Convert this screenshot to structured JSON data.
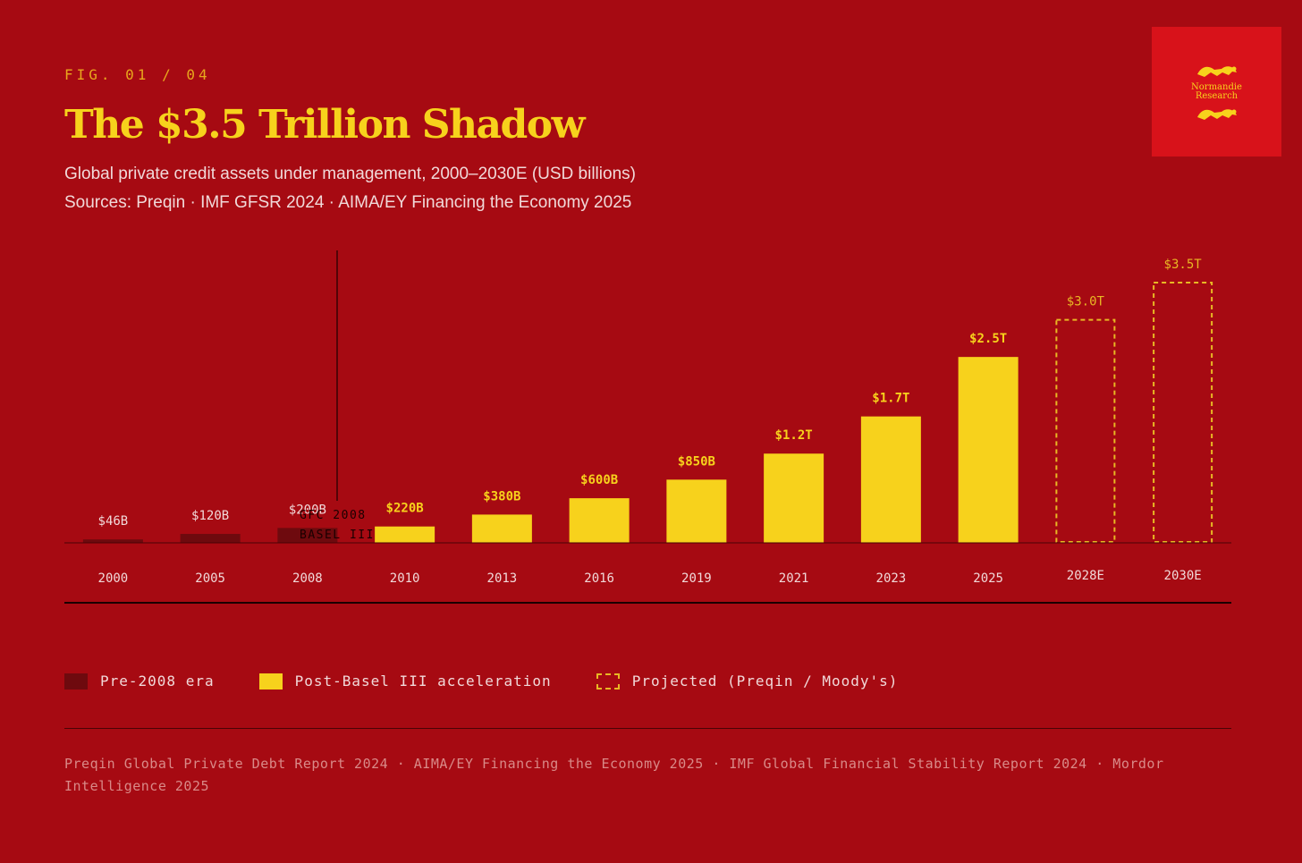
{
  "header": {
    "fig_label": "FIG. 01 / 04",
    "title": "The $3.5 Trillion Shadow",
    "subtitle": "Global private credit assets under management, 2000–2030E (USD billions)",
    "sources": "Sources: Preqin · IMF GFSR 2024 · AIMA/EY Financing the Economy 2025"
  },
  "logo": {
    "text": "Normandie\nResearch"
  },
  "chart_data": {
    "type": "bar",
    "title": "The $3.5 Trillion Shadow",
    "ylabel": "USD billions",
    "ylim": [
      0,
      3500
    ],
    "categories": [
      "2000",
      "2005",
      "2008",
      "2010",
      "2013",
      "2016",
      "2019",
      "2021",
      "2023",
      "2025",
      "2028E",
      "2030E"
    ],
    "values": [
      46,
      120,
      200,
      220,
      380,
      600,
      850,
      1200,
      1700,
      2500,
      3000,
      3500
    ],
    "value_labels": [
      "$46B",
      "$120B",
      "$200B",
      "$220B",
      "$380B",
      "$600B",
      "$850B",
      "$1.2T",
      "$1.7T",
      "$2.5T",
      "$3.0T",
      "$3.5T"
    ],
    "eras": [
      "pre",
      "pre",
      "pre",
      "post",
      "post",
      "post",
      "post",
      "post",
      "post",
      "post",
      "proj",
      "proj"
    ],
    "annotation": {
      "after_category": "2008",
      "lines": [
        "GFC 2008",
        "BASEL III"
      ]
    },
    "colors": {
      "pre": "#6e0a0e",
      "post": "#f7d21c",
      "proj": "#e8b824"
    }
  },
  "legend": {
    "pre": "Pre-2008 era",
    "post": "Post-Basel III acceleration",
    "proj": "Projected (Preqin / Moody's)"
  },
  "footer": "Preqin Global Private Debt Report 2024 · AIMA/EY Financing the Economy 2025 · IMF Global Financial Stability Report 2024 · Mordor Intelligence 2025"
}
